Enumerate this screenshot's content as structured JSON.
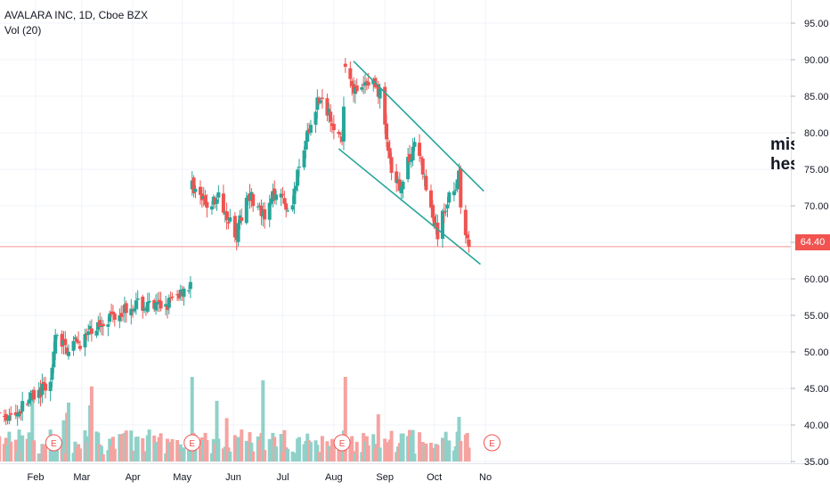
{
  "chart_data": {
    "type": "candlestick",
    "symbol_line": "AVALARA INC, 1D, Cboe BZX",
    "indicator_line": "Vol (20)",
    "last_price_label": "64.40",
    "last_price": 64.4,
    "annotation": "mis\nhes",
    "earnings_marker_label": "E",
    "earnings_x": [
      "Feb 12",
      "May 7",
      "Aug 6",
      "Nov 5"
    ],
    "x_axis_labels": [
      "Feb",
      "Mar",
      "Apr",
      "May",
      "Jun",
      "Jul",
      "Aug",
      "Sep",
      "Oct",
      "No"
    ],
    "y_axis_ticks": [
      "35.00",
      "40.00",
      "45.00",
      "50.00",
      "55.00",
      "60.00",
      "65.00",
      "70.00",
      "75.00",
      "80.00",
      "85.00",
      "90.00",
      "95.00"
    ],
    "ylim": [
      34.5,
      97.5
    ],
    "grid": true,
    "colors": {
      "up": "#26a69a",
      "down": "#ef5350",
      "vol_up": "#8fd1c9",
      "vol_down": "#f5a3a1",
      "trendline": "#26a69a",
      "price_line": "#f05350"
    },
    "anchors": [
      [
        "Jan 2",
        43.0
      ],
      [
        "Jan 10",
        42.0
      ],
      [
        "Jan 18",
        41.0
      ],
      [
        "Jan 28",
        43.5
      ],
      [
        "Feb 7",
        45.0
      ],
      [
        "Feb 11",
        47.0
      ],
      [
        "Feb 13",
        52.0
      ],
      [
        "Feb 20",
        50.5
      ],
      [
        "Mar 1",
        51.5
      ],
      [
        "Mar 15",
        54.5
      ],
      [
        "Apr 1",
        56.5
      ],
      [
        "Apr 15",
        56.0
      ],
      [
        "Apr 25",
        57.0
      ],
      [
        "May 3",
        59.0
      ],
      [
        "May 6",
        59.0
      ],
      [
        "May 7",
        73.0
      ],
      [
        "May 15",
        70.0
      ],
      [
        "May 24",
        71.0
      ],
      [
        "Jun 3",
        66.0
      ],
      [
        "Jun 10",
        72.0
      ],
      [
        "Jun 20",
        68.0
      ],
      [
        "Jun 28",
        73.0
      ],
      [
        "Jul 5",
        69.0
      ],
      [
        "Jul 12",
        76.0
      ],
      [
        "Jul 22",
        84.5
      ],
      [
        "Jul 29",
        83.0
      ],
      [
        "Aug 5",
        79.0
      ],
      [
        "Aug 6",
        78.0
      ],
      [
        "Aug 8",
        89.5
      ],
      [
        "Aug 15",
        85.0
      ],
      [
        "Aug 23",
        87.5
      ],
      [
        "Aug 30",
        85.0
      ],
      [
        "Sep 6",
        72.0
      ],
      [
        "Sep 12",
        73.5
      ],
      [
        "Sep 20",
        79.5
      ],
      [
        "Sep 27",
        71.0
      ],
      [
        "Oct 3",
        66.0
      ],
      [
        "Oct 10",
        71.5
      ],
      [
        "Oct 16",
        74.0
      ],
      [
        "Oct 18",
        66.0
      ],
      [
        "Oct 22",
        64.4
      ]
    ],
    "trendlines": [
      {
        "name": "upper",
        "from": [
          "Aug 13",
          89.8
        ],
        "to": [
          "Oct 31",
          72.0
        ]
      },
      {
        "name": "lower",
        "from": [
          "Aug 4",
          77.8
        ],
        "to": [
          "Oct 29",
          62.0
        ]
      }
    ]
  }
}
